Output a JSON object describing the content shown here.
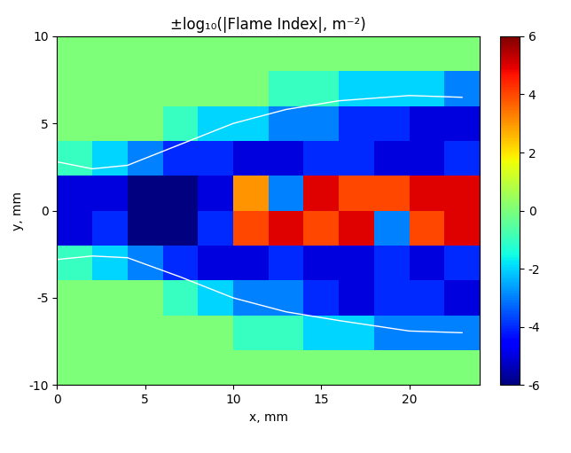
{
  "chart_data": {
    "type": "heatmap",
    "title": "±log₁₀(|Flame Index|, m⁻²)",
    "x_label": "x, mm",
    "y_label": "y, mm",
    "xlim": [
      0,
      24
    ],
    "ylim": [
      -10,
      10
    ],
    "xticks": [
      0,
      5,
      10,
      15,
      20
    ],
    "yticks": [
      -10,
      -5,
      0,
      5,
      10
    ],
    "cell_x": [
      1,
      3,
      5,
      7,
      9,
      11,
      13,
      15,
      17,
      19,
      21,
      23
    ],
    "cell_y": [
      -9,
      -7,
      -5,
      -3,
      -1,
      1,
      3,
      5,
      7,
      9
    ],
    "cells": [
      [
        0,
        0,
        0,
        0,
        0,
        0,
        0,
        0,
        0,
        0,
        0,
        0
      ],
      [
        0,
        0,
        0,
        0,
        0,
        -1,
        -1,
        -2,
        -2,
        -3,
        -3,
        -3
      ],
      [
        0,
        0,
        0,
        -1,
        -2,
        -3,
        -3,
        -4,
        -5,
        -4,
        -4,
        -5
      ],
      [
        -1,
        -2,
        -3,
        -4,
        -5,
        -5,
        -4,
        -5,
        -5,
        -4,
        -5,
        -4
      ],
      [
        -5,
        -4,
        -6,
        -6,
        -4,
        4,
        5,
        4,
        5,
        -3,
        4,
        5
      ],
      [
        -5,
        -5,
        -6,
        -6,
        -5,
        3,
        -3,
        5,
        4,
        4,
        5,
        5
      ],
      [
        -1,
        -2,
        -3,
        -4,
        -4,
        -5,
        -5,
        -4,
        -4,
        -5,
        -5,
        -4
      ],
      [
        0,
        0,
        0,
        -1,
        -2,
        -2,
        -3,
        -3,
        -4,
        -4,
        -5,
        -5
      ],
      [
        0,
        0,
        0,
        0,
        0,
        0,
        -1,
        -1,
        -2,
        -2,
        -2,
        -3
      ],
      [
        0,
        0,
        0,
        0,
        0,
        0,
        0,
        0,
        0,
        0,
        0,
        0
      ]
    ],
    "color_range": [
      -6,
      6
    ],
    "color_ticks": [
      -6,
      -4,
      -2,
      0,
      2,
      4,
      6
    ],
    "contours": [
      {
        "x": [
          0,
          2,
          4,
          7,
          10,
          13,
          16,
          20,
          23
        ],
        "y": [
          2.8,
          2.4,
          2.6,
          3.8,
          5.0,
          5.8,
          6.3,
          6.6,
          6.5
        ]
      },
      {
        "x": [
          0,
          2,
          4,
          7,
          10,
          13,
          16,
          20,
          23
        ],
        "y": [
          -2.8,
          -2.6,
          -2.7,
          -3.8,
          -5.0,
          -5.8,
          -6.3,
          -6.9,
          -7.0
        ]
      }
    ]
  }
}
